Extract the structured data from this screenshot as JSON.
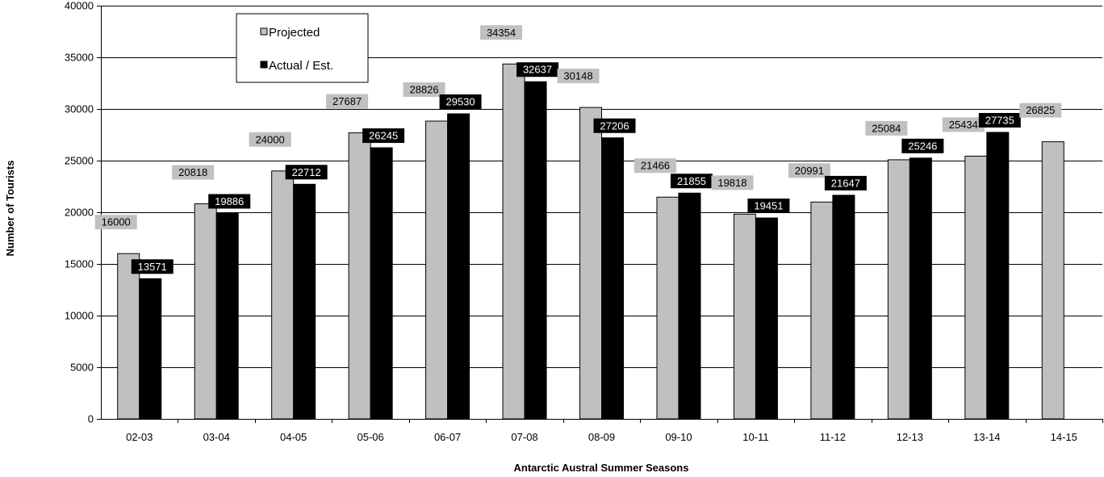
{
  "chart_data": {
    "type": "bar",
    "title": "",
    "xlabel": "Antarctic Austral Summer Seasons",
    "ylabel": "Number of Tourists",
    "ylim": [
      0,
      40000
    ],
    "yticks": [
      0,
      5000,
      10000,
      15000,
      20000,
      25000,
      30000,
      35000,
      40000
    ],
    "categories": [
      "02-03",
      "03-04",
      "04-05",
      "05-06",
      "06-07",
      "07-08",
      "08-09",
      "09-10",
      "10-11",
      "11-12",
      "12-13",
      "13-14",
      "14-15"
    ],
    "series": [
      {
        "name": "Projected",
        "color": "#c0c0c0",
        "values": [
          16000,
          20818,
          24000,
          27687,
          28826,
          34354,
          30148,
          21466,
          19818,
          20991,
          25084,
          25434,
          26825
        ]
      },
      {
        "name": "Actual / Est.",
        "color": "#000000",
        "values": [
          13571,
          19886,
          22712,
          26245,
          29530,
          32637,
          27206,
          21855,
          19451,
          21647,
          25246,
          27735,
          null
        ]
      }
    ],
    "grid": true,
    "legend_position": "top-left"
  }
}
